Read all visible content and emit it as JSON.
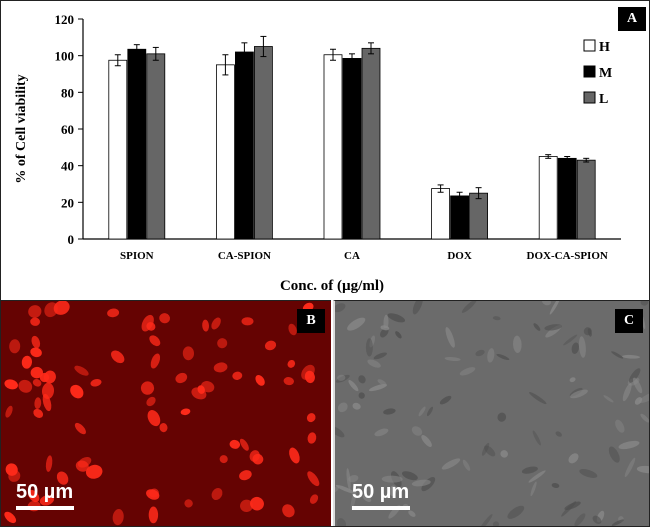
{
  "chart_data": {
    "type": "bar",
    "panel_label": "A",
    "xlabel": "Conc. of  (µg/ml)",
    "ylabel": "% of Cell viability",
    "ylim": [
      0,
      120
    ],
    "yticks": [
      0,
      20,
      40,
      60,
      80,
      100,
      120
    ],
    "categories": [
      "SPION",
      "CA-SPION",
      "CA",
      "DOX",
      "DOX-CA-SPION"
    ],
    "series": [
      {
        "name": "H",
        "values": [
          97.5,
          95,
          100.5,
          27.5,
          45
        ],
        "errors": [
          3,
          5.5,
          3,
          2,
          1
        ]
      },
      {
        "name": "M",
        "values": [
          103.5,
          102,
          98.5,
          23.5,
          44
        ],
        "errors": [
          2.5,
          5,
          2.5,
          2,
          1
        ]
      },
      {
        "name": "L",
        "values": [
          101,
          105,
          104,
          25,
          43
        ],
        "errors": [
          3.5,
          5.5,
          3,
          3,
          1
        ]
      }
    ],
    "colors": {
      "H": "#ffffff",
      "M": "#000000",
      "L": "#666666"
    },
    "legend_position": "top-right",
    "grid": false
  },
  "panels": {
    "b": {
      "label": "B",
      "scale": "50 µm",
      "background": "#5a0000",
      "cell_color": "#ff2a1a"
    },
    "c": {
      "label": "C",
      "scale": "50 µm",
      "background": "#6b6b6b"
    }
  }
}
